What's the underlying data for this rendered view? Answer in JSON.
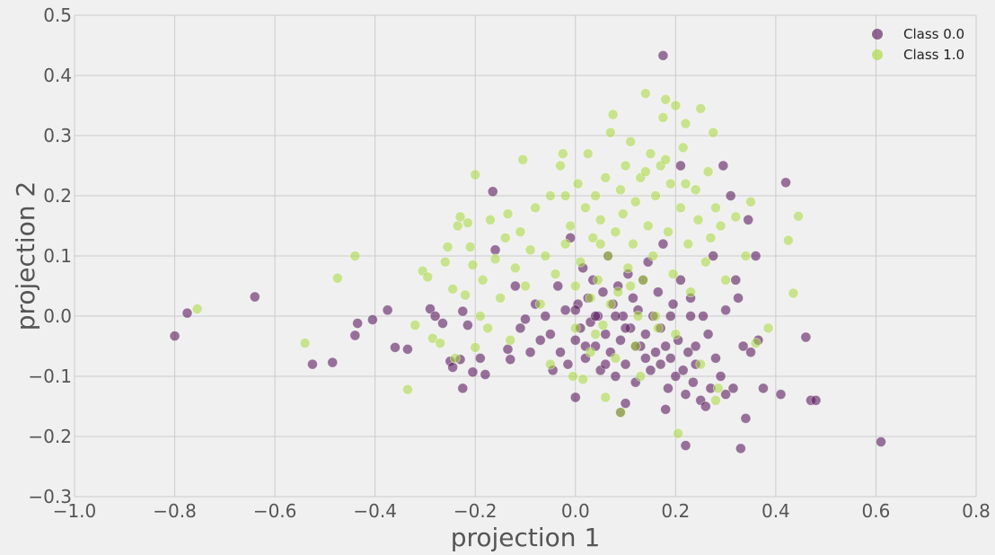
{
  "chart_data": {
    "type": "scatter",
    "title": "",
    "xlabel": "projection 1",
    "ylabel": "projection 2",
    "xlim": [
      -1.0,
      0.8
    ],
    "ylim": [
      -0.3,
      0.5
    ],
    "x_ticks": [
      -1.0,
      -0.8,
      -0.6,
      -0.4,
      -0.2,
      0.0,
      0.2,
      0.4,
      0.6,
      0.8
    ],
    "y_ticks": [
      -0.3,
      -0.2,
      -0.1,
      0.0,
      0.1,
      0.2,
      0.3,
      0.4,
      0.5
    ],
    "x_tick_labels": [
      "−1.0",
      "−0.8",
      "−0.6",
      "−0.4",
      "−0.2",
      "0.0",
      "0.2",
      "0.4",
      "0.6",
      "0.8"
    ],
    "y_tick_labels": [
      "−0.3",
      "−0.2",
      "−0.1",
      "0.0",
      "0.1",
      "0.2",
      "0.3",
      "0.4",
      "0.5"
    ],
    "grid": true,
    "legend_position": "top-right",
    "series": [
      {
        "name": "Class 0.0",
        "color": "#5a1a5e",
        "points": [
          [
            0.175,
            0.433
          ],
          [
            -0.8,
            -0.033
          ],
          [
            -0.775,
            0.005
          ],
          [
            -0.64,
            0.032
          ],
          [
            -0.525,
            -0.08
          ],
          [
            -0.485,
            -0.077
          ],
          [
            -0.44,
            -0.032
          ],
          [
            -0.435,
            -0.012
          ],
          [
            -0.405,
            -0.006
          ],
          [
            -0.375,
            0.01
          ],
          [
            -0.36,
            -0.052
          ],
          [
            -0.335,
            -0.055
          ],
          [
            -0.29,
            0.012
          ],
          [
            -0.28,
            0.0
          ],
          [
            -0.265,
            -0.012
          ],
          [
            -0.25,
            -0.075
          ],
          [
            -0.245,
            -0.085
          ],
          [
            -0.23,
            -0.072
          ],
          [
            -0.225,
            0.008
          ],
          [
            -0.225,
            -0.12
          ],
          [
            -0.215,
            -0.015
          ],
          [
            -0.205,
            -0.093
          ],
          [
            -0.19,
            -0.07
          ],
          [
            -0.18,
            -0.097
          ],
          [
            -0.16,
            0.11
          ],
          [
            -0.165,
            0.207
          ],
          [
            -0.135,
            -0.055
          ],
          [
            -0.13,
            -0.072
          ],
          [
            -0.12,
            0.05
          ],
          [
            -0.11,
            -0.02
          ],
          [
            -0.1,
            -0.005
          ],
          [
            -0.09,
            -0.06
          ],
          [
            -0.08,
            0.02
          ],
          [
            -0.07,
            -0.04
          ],
          [
            -0.06,
            0.0
          ],
          [
            -0.05,
            -0.03
          ],
          [
            -0.045,
            -0.09
          ],
          [
            -0.035,
            0.05
          ],
          [
            -0.03,
            -0.06
          ],
          [
            -0.02,
            0.01
          ],
          [
            -0.015,
            -0.08
          ],
          [
            -0.01,
            0.13
          ],
          [
            0.0,
            -0.04
          ],
          [
            0.005,
            0.02
          ],
          [
            0.01,
            -0.02
          ],
          [
            0.015,
            0.08
          ],
          [
            0.02,
            -0.07
          ],
          [
            0.025,
            0.03
          ],
          [
            0.03,
            -0.01
          ],
          [
            0.035,
            0.06
          ],
          [
            0.04,
            -0.05
          ],
          [
            0.045,
            0.0
          ],
          [
            0.05,
            -0.09
          ],
          [
            0.055,
            0.04
          ],
          [
            0.06,
            -0.03
          ],
          [
            0.065,
            0.1
          ],
          [
            0.07,
            -0.06
          ],
          [
            0.075,
            0.02
          ],
          [
            0.08,
            -0.1
          ],
          [
            0.085,
            0.05
          ],
          [
            0.09,
            -0.04
          ],
          [
            0.095,
            0.0
          ],
          [
            0.1,
            -0.08
          ],
          [
            0.105,
            0.07
          ],
          [
            0.11,
            -0.02
          ],
          [
            0.115,
            0.03
          ],
          [
            0.12,
            -0.11
          ],
          [
            0.125,
            0.01
          ],
          [
            0.13,
            -0.05
          ],
          [
            0.135,
            0.06
          ],
          [
            0.14,
            -0.07
          ],
          [
            0.145,
            0.09
          ],
          [
            0.15,
            -0.09
          ],
          [
            0.155,
            0.0
          ],
          [
            0.16,
            -0.06
          ],
          [
            0.165,
            0.04
          ],
          [
            0.17,
            -0.08
          ],
          [
            0.175,
            0.12
          ],
          [
            0.18,
            -0.05
          ],
          [
            0.185,
            -0.12
          ],
          [
            0.19,
            -0.07
          ],
          [
            0.195,
            0.02
          ],
          [
            0.2,
            -0.1
          ],
          [
            0.205,
            -0.04
          ],
          [
            0.21,
            0.06
          ],
          [
            0.215,
            -0.09
          ],
          [
            0.22,
            -0.13
          ],
          [
            0.225,
            -0.06
          ],
          [
            0.23,
            0.03
          ],
          [
            0.235,
            -0.11
          ],
          [
            0.24,
            -0.08
          ],
          [
            0.25,
            -0.14
          ],
          [
            0.255,
            0.0
          ],
          [
            0.26,
            -0.15
          ],
          [
            0.265,
            -0.03
          ],
          [
            0.27,
            -0.12
          ],
          [
            0.275,
            0.1
          ],
          [
            0.28,
            -0.07
          ],
          [
            0.29,
            -0.1
          ],
          [
            0.295,
            0.25
          ],
          [
            0.3,
            -0.13
          ],
          [
            0.31,
            0.2
          ],
          [
            0.315,
            -0.12
          ],
          [
            0.32,
            0.06
          ],
          [
            0.325,
            0.03
          ],
          [
            0.33,
            -0.22
          ],
          [
            0.335,
            -0.05
          ],
          [
            0.34,
            -0.17
          ],
          [
            0.345,
            0.16
          ],
          [
            0.35,
            -0.06
          ],
          [
            0.36,
            0.1
          ],
          [
            0.365,
            -0.04
          ],
          [
            0.375,
            -0.12
          ],
          [
            0.41,
            -0.13
          ],
          [
            0.42,
            0.222
          ],
          [
            0.46,
            -0.035
          ],
          [
            0.47,
            -0.14
          ],
          [
            0.48,
            -0.14
          ],
          [
            0.61,
            -0.209
          ],
          [
            0.22,
            -0.215
          ],
          [
            0.21,
            0.25
          ],
          [
            0.1,
            -0.145
          ],
          [
            0.09,
            -0.16
          ],
          [
            0.0,
            -0.135
          ],
          [
            0.18,
            -0.155
          ],
          [
            0.3,
            0.01
          ],
          [
            0.24,
            -0.05
          ],
          [
            0.23,
            0.0
          ],
          [
            0.19,
            0.0
          ],
          [
            0.17,
            -0.02
          ],
          [
            0.14,
            -0.03
          ],
          [
            0.12,
            -0.05
          ],
          [
            0.1,
            -0.02
          ],
          [
            0.08,
            0.0
          ],
          [
            0.06,
            -0.08
          ],
          [
            0.04,
            0.0
          ],
          [
            0.02,
            -0.05
          ],
          [
            0.0,
            0.01
          ]
        ]
      },
      {
        "name": "Class 1.0",
        "color": "#a8d83c",
        "points": [
          [
            -0.755,
            0.012
          ],
          [
            -0.54,
            -0.045
          ],
          [
            -0.475,
            0.063
          ],
          [
            -0.44,
            0.1
          ],
          [
            -0.335,
            -0.122
          ],
          [
            -0.32,
            -0.015
          ],
          [
            -0.305,
            0.075
          ],
          [
            -0.295,
            0.065
          ],
          [
            -0.285,
            -0.037
          ],
          [
            -0.27,
            -0.045
          ],
          [
            -0.26,
            0.09
          ],
          [
            -0.255,
            0.115
          ],
          [
            -0.245,
            0.045
          ],
          [
            -0.24,
            -0.07
          ],
          [
            -0.235,
            0.15
          ],
          [
            -0.23,
            0.165
          ],
          [
            -0.22,
            0.035
          ],
          [
            -0.215,
            0.155
          ],
          [
            -0.21,
            0.115
          ],
          [
            -0.205,
            0.085
          ],
          [
            -0.2,
            -0.052
          ],
          [
            -0.2,
            0.235
          ],
          [
            -0.19,
            0.0
          ],
          [
            -0.185,
            0.06
          ],
          [
            -0.175,
            -0.02
          ],
          [
            -0.17,
            0.16
          ],
          [
            -0.16,
            0.095
          ],
          [
            -0.15,
            0.03
          ],
          [
            -0.14,
            0.13
          ],
          [
            -0.135,
            0.17
          ],
          [
            -0.13,
            -0.04
          ],
          [
            -0.12,
            0.08
          ],
          [
            -0.11,
            0.14
          ],
          [
            -0.105,
            0.26
          ],
          [
            -0.1,
            0.05
          ],
          [
            -0.09,
            0.11
          ],
          [
            -0.08,
            0.18
          ],
          [
            -0.07,
            0.02
          ],
          [
            -0.06,
            0.1
          ],
          [
            -0.05,
            0.2
          ],
          [
            -0.04,
            0.07
          ],
          [
            -0.03,
            0.25
          ],
          [
            -0.025,
            0.27
          ],
          [
            -0.02,
            0.12
          ],
          [
            -0.01,
            0.15
          ],
          [
            0.0,
            0.05
          ],
          [
            0.005,
            0.22
          ],
          [
            0.01,
            0.09
          ],
          [
            0.015,
            -0.105
          ],
          [
            0.02,
            0.18
          ],
          [
            0.025,
            0.27
          ],
          [
            0.03,
            0.03
          ],
          [
            0.035,
            0.13
          ],
          [
            0.04,
            0.2
          ],
          [
            0.045,
            0.06
          ],
          [
            0.05,
            0.16
          ],
          [
            0.055,
            -0.015
          ],
          [
            0.06,
            0.23
          ],
          [
            0.065,
            0.1
          ],
          [
            0.07,
            0.305
          ],
          [
            0.075,
            0.335
          ],
          [
            0.08,
            0.14
          ],
          [
            0.085,
            0.04
          ],
          [
            0.09,
            0.21
          ],
          [
            0.095,
            0.17
          ],
          [
            0.1,
            0.25
          ],
          [
            0.105,
            0.08
          ],
          [
            0.11,
            0.29
          ],
          [
            0.115,
            0.12
          ],
          [
            0.12,
            0.19
          ],
          [
            0.125,
            0.0
          ],
          [
            0.13,
            0.23
          ],
          [
            0.135,
            0.06
          ],
          [
            0.14,
            0.37
          ],
          [
            0.145,
            0.15
          ],
          [
            0.15,
            0.27
          ],
          [
            0.155,
            0.1
          ],
          [
            0.16,
            0.2
          ],
          [
            0.165,
            -0.02
          ],
          [
            0.17,
            0.25
          ],
          [
            0.175,
            0.33
          ],
          [
            0.18,
            0.36
          ],
          [
            0.185,
            0.14
          ],
          [
            0.19,
            0.22
          ],
          [
            0.195,
            0.07
          ],
          [
            0.2,
            0.35
          ],
          [
            0.205,
            -0.195
          ],
          [
            0.21,
            0.18
          ],
          [
            0.215,
            0.28
          ],
          [
            0.22,
            0.32
          ],
          [
            0.225,
            0.12
          ],
          [
            0.23,
            0.04
          ],
          [
            0.24,
            0.21
          ],
          [
            0.245,
            0.16
          ],
          [
            0.25,
            0.345
          ],
          [
            0.26,
            0.09
          ],
          [
            0.265,
            0.24
          ],
          [
            0.27,
            0.13
          ],
          [
            0.275,
            0.305
          ],
          [
            0.28,
            0.18
          ],
          [
            0.285,
            -0.12
          ],
          [
            0.29,
            0.15
          ],
          [
            0.3,
            0.06
          ],
          [
            0.32,
            0.165
          ],
          [
            0.34,
            0.1
          ],
          [
            0.35,
            0.19
          ],
          [
            0.36,
            -0.045
          ],
          [
            0.385,
            -0.02
          ],
          [
            0.425,
            0.126
          ],
          [
            0.435,
            0.038
          ],
          [
            0.445,
            0.166
          ],
          [
            0.09,
            -0.16
          ],
          [
            0.06,
            -0.135
          ],
          [
            -0.005,
            -0.1
          ],
          [
            0.28,
            -0.14
          ],
          [
            0.16,
            0.0
          ],
          [
            0.12,
            -0.05
          ],
          [
            0.08,
            -0.07
          ],
          [
            0.04,
            -0.03
          ],
          [
            0.0,
            -0.02
          ],
          [
            -0.05,
            -0.08
          ],
          [
            0.2,
            -0.03
          ],
          [
            0.25,
            -0.08
          ],
          [
            0.11,
            0.05
          ],
          [
            0.05,
            0.12
          ],
          [
            -0.02,
            0.2
          ],
          [
            0.14,
            0.24
          ],
          [
            0.18,
            0.26
          ],
          [
            0.22,
            0.22
          ],
          [
            0.07,
            0.02
          ],
          [
            0.03,
            -0.06
          ],
          [
            0.13,
            -0.1
          ]
        ]
      }
    ]
  }
}
